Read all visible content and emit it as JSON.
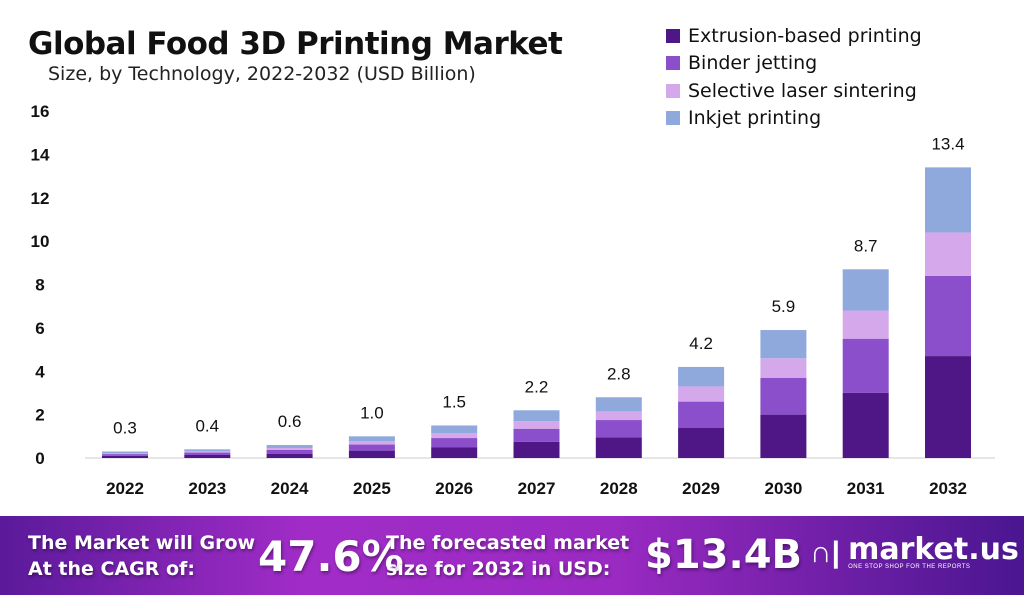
{
  "chart_data": {
    "type": "bar",
    "stacked": true,
    "title": "Global Food 3D Printing Market",
    "subtitle": "Size, by Technology, 2022-2032 (USD Billion)",
    "categories": [
      "2022",
      "2023",
      "2024",
      "2025",
      "2026",
      "2027",
      "2028",
      "2029",
      "2030",
      "2031",
      "2032"
    ],
    "totals": [
      "0.3",
      "0.4",
      "0.6",
      "1.0",
      "1.5",
      "2.2",
      "2.8",
      "4.2",
      "5.9",
      "8.7",
      "13.4"
    ],
    "series": [
      {
        "name": "Extrusion-based printing",
        "color": "#4e1785",
        "values": [
          0.1,
          0.14,
          0.2,
          0.34,
          0.5,
          0.75,
          0.95,
          1.4,
          2.0,
          3.0,
          4.7
        ]
      },
      {
        "name": "Binder jetting",
        "color": "#8b4fcc",
        "values": [
          0.08,
          0.11,
          0.17,
          0.28,
          0.42,
          0.6,
          0.8,
          1.2,
          1.7,
          2.5,
          3.7
        ]
      },
      {
        "name": "Selective laser sintering",
        "color": "#d4a8ea",
        "values": [
          0.05,
          0.06,
          0.09,
          0.15,
          0.23,
          0.35,
          0.4,
          0.7,
          0.9,
          1.3,
          2.0
        ]
      },
      {
        "name": "Inkjet printing",
        "color": "#8fa9dc",
        "values": [
          0.07,
          0.09,
          0.14,
          0.23,
          0.35,
          0.5,
          0.65,
          0.9,
          1.3,
          1.9,
          3.0
        ]
      }
    ],
    "yticks": [
      "0",
      "2",
      "4",
      "6",
      "8",
      "10",
      "12",
      "14",
      "16"
    ],
    "ylim": [
      0,
      16
    ],
    "grid": false,
    "legend": "top-right"
  },
  "footer": {
    "cagr_label": "The Market will Grow At the CAGR of:",
    "cagr_value": "47.6%",
    "forecast_label": "The forecasted market size for 2032 in USD:",
    "forecast_value": "$13.4B",
    "brand": "market.us",
    "tagline": "ONE STOP SHOP FOR THE REPORTS"
  }
}
